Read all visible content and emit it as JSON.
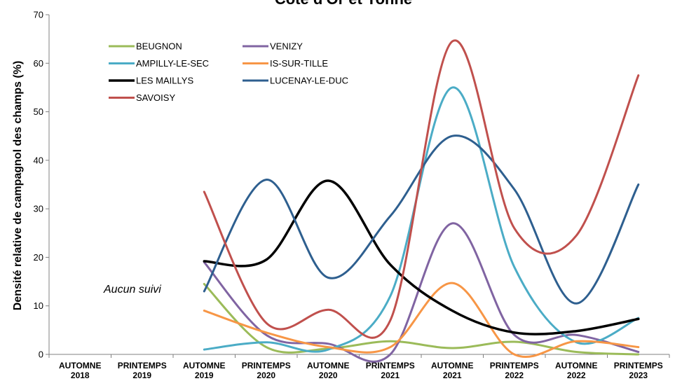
{
  "chart_data": {
    "type": "line",
    "title": "Côte d'Or et Yonne",
    "ylabel": "Densité relative de campagnol des champs (%)",
    "xlabel": "",
    "ylim": [
      0,
      70
    ],
    "yticks": [
      0,
      10,
      20,
      30,
      40,
      50,
      60,
      70
    ],
    "grid": false,
    "legend_position": "top-left",
    "categories": [
      {
        "line1": "AUTOMNE",
        "line2": "2018"
      },
      {
        "line1": "PRINTEMPS",
        "line2": "2019"
      },
      {
        "line1": "AUTOMNE",
        "line2": "2019"
      },
      {
        "line1": "PRINTEMPS",
        "line2": "2020"
      },
      {
        "line1": "AUTOMNE",
        "line2": "2020"
      },
      {
        "line1": "PRINTEMPS",
        "line2": "2021"
      },
      {
        "line1": "AUTOMNE",
        "line2": "2021"
      },
      {
        "line1": "PRINTEMPS",
        "line2": "2022"
      },
      {
        "line1": "AUTOMNE",
        "line2": "2022"
      },
      {
        "line1": "PRINTEMPS",
        "line2": "2023"
      }
    ],
    "annotation": "Aucun suivi",
    "series": [
      {
        "name": "BEUGNON",
        "color": "#9bbb59",
        "width": 3,
        "values": [
          null,
          null,
          14.5,
          1.5,
          1.2,
          2.7,
          1.3,
          2.6,
          0.5,
          0
        ]
      },
      {
        "name": "VENIZY",
        "color": "#8064a2",
        "width": 3,
        "values": [
          null,
          null,
          19,
          4,
          2.2,
          0,
          27,
          4,
          4,
          0.5
        ]
      },
      {
        "name": "AMPILLY-LE-SEC",
        "color": "#4bacc6",
        "width": 3,
        "values": [
          null,
          null,
          1,
          2.5,
          1,
          12,
          55,
          18,
          2.5,
          7.5
        ]
      },
      {
        "name": "IS-SUR-TILLE",
        "color": "#f79646",
        "width": 3,
        "values": [
          null,
          null,
          9,
          4.5,
          1.5,
          1.5,
          14.7,
          0,
          2.7,
          1.5
        ]
      },
      {
        "name": "LES MAILLYS",
        "color": "#000000",
        "width": 3.5,
        "values": [
          null,
          null,
          19.2,
          19.5,
          35.8,
          18.5,
          9,
          4.5,
          4.8,
          7.3
        ]
      },
      {
        "name": "LUCENAY-LE-DUC",
        "color": "#2e5f8f",
        "width": 3,
        "values": [
          null,
          null,
          13,
          36,
          15.8,
          28.5,
          45,
          34,
          10.5,
          35
        ]
      },
      {
        "name": "SAVOISY",
        "color": "#c0504d",
        "width": 3,
        "values": [
          null,
          null,
          33.5,
          6.5,
          9.2,
          7,
          64.5,
          26,
          24.5,
          57.5
        ]
      }
    ]
  }
}
